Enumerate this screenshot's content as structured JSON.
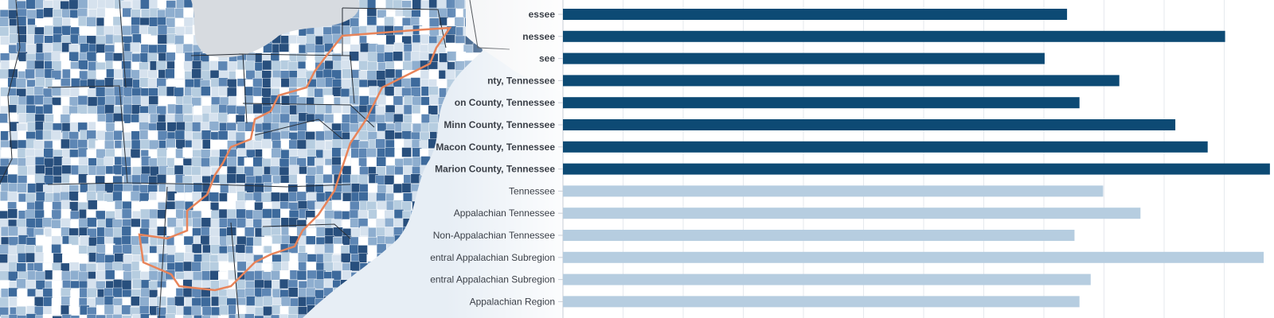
{
  "map": {
    "description_icon": "choropleth-map",
    "ocean_color": "#e7eef5",
    "land_color": "#f3f4f6",
    "shade_colors": [
      "#ffffff",
      "#d6e2ee",
      "#b6cde0",
      "#8eaecf",
      "#5d86b4",
      "#3d6a9c",
      "#284f7d"
    ],
    "region_outline_color": "#e8845a"
  },
  "chart_data": {
    "type": "bar",
    "orientation": "horizontal",
    "categories": [
      "essee",
      "nessee",
      "see",
      "nty, Tennessee",
      "on County, Tennessee",
      "Minn County, Tennessee",
      "Macon County, Tennessee",
      "Marion County, Tennessee",
      "Tennessee",
      "Appalachian Tennessee",
      "Non-Appalachian Tennessee",
      "Central Appalachian Subregion",
      "South Central Appalachian Subregion",
      "Appalachian Region"
    ],
    "values": [
      40.5,
      53.2,
      38.7,
      44.7,
      41.5,
      49.2,
      51.8,
      56.8,
      43.4,
      46.4,
      41.1,
      56.3,
      42.4,
      41.5
    ],
    "series_colors": [
      "#0d4a74",
      "#0d4a74",
      "#0d4a74",
      "#0d4a74",
      "#0d4a74",
      "#0d4a74",
      "#0d4a74",
      "#0d4a74",
      "#b6cde0",
      "#b6cde0",
      "#b6cde0",
      "#b6cde0",
      "#b6cde0",
      "#b6cde0"
    ],
    "xlim": [
      0,
      57
    ],
    "grid": true,
    "title": "",
    "xlabel": "",
    "ylabel": ""
  }
}
